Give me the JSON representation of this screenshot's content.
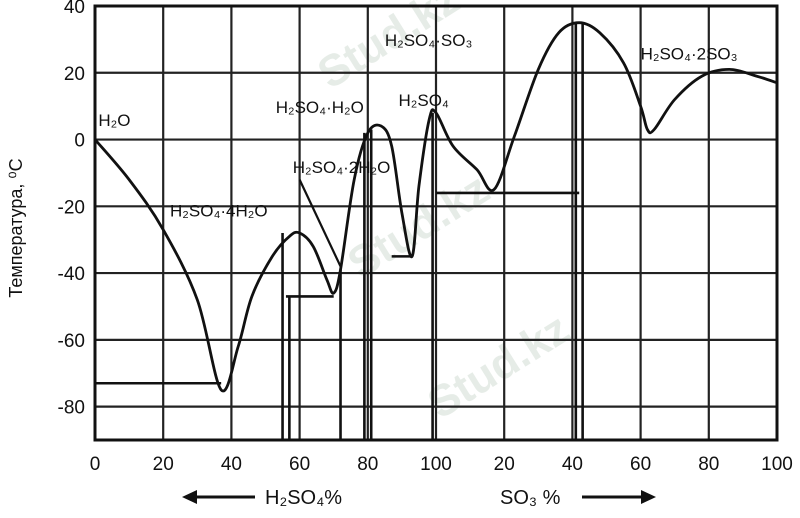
{
  "chart_data": {
    "type": "line",
    "ylabel": "Температура, ⁰С",
    "ylim": [
      -90,
      40
    ],
    "y_ticks": [
      "40",
      "20",
      "0",
      "-20",
      "-40",
      "-60",
      "-80"
    ],
    "x_ticks": [
      "0",
      "20",
      "40",
      "60",
      "80",
      "100",
      "20",
      "40",
      "60",
      "80",
      "100"
    ],
    "x_axis_left_label": "H₂SO₄%",
    "x_axis_right_label": "SO₃ %",
    "grid": true,
    "series": [
      {
        "values": [
          {
            "seg": "H2SO4",
            "x": 0,
            "y": 0
          },
          {
            "seg": "H2SO4",
            "x": 10,
            "y": -12
          },
          {
            "seg": "H2SO4",
            "x": 20,
            "y": -27
          },
          {
            "seg": "H2SO4",
            "x": 30,
            "y": -48
          },
          {
            "seg": "H2SO4",
            "x": 37,
            "y": -75
          },
          {
            "seg": "H2SO4",
            "x": 42,
            "y": -62
          },
          {
            "seg": "H2SO4",
            "x": 46,
            "y": -47
          },
          {
            "seg": "H2SO4",
            "x": 52,
            "y": -35
          },
          {
            "seg": "H2SO4",
            "x": 57,
            "y": -29
          },
          {
            "seg": "H2SO4",
            "x": 60,
            "y": -28
          },
          {
            "seg": "H2SO4",
            "x": 64,
            "y": -32
          },
          {
            "seg": "H2SO4",
            "x": 68,
            "y": -42
          },
          {
            "seg": "H2SO4",
            "x": 70,
            "y": -46
          },
          {
            "seg": "H2SO4",
            "x": 72,
            "y": -39
          },
          {
            "seg": "H2SO4",
            "x": 76,
            "y": -12
          },
          {
            "seg": "H2SO4",
            "x": 80,
            "y": 2
          },
          {
            "seg": "H2SO4",
            "x": 84,
            "y": 4
          },
          {
            "seg": "H2SO4",
            "x": 87,
            "y": -2
          },
          {
            "seg": "H2SO4",
            "x": 90,
            "y": -22
          },
          {
            "seg": "H2SO4",
            "x": 93,
            "y": -35
          },
          {
            "seg": "H2SO4",
            "x": 95,
            "y": -14
          },
          {
            "seg": "H2SO4",
            "x": 98,
            "y": 6
          },
          {
            "seg": "H2SO4",
            "x": 100,
            "y": 8
          },
          {
            "seg": "SO3",
            "x": 5,
            "y": -2
          },
          {
            "seg": "SO3",
            "x": 12,
            "y": -9
          },
          {
            "seg": "SO3",
            "x": 17,
            "y": -15
          },
          {
            "seg": "SO3",
            "x": 23,
            "y": 1
          },
          {
            "seg": "SO3",
            "x": 30,
            "y": 21
          },
          {
            "seg": "SO3",
            "x": 36,
            "y": 32
          },
          {
            "seg": "SO3",
            "x": 42,
            "y": 35
          },
          {
            "seg": "SO3",
            "x": 48,
            "y": 32
          },
          {
            "seg": "SO3",
            "x": 55,
            "y": 23
          },
          {
            "seg": "SO3",
            "x": 60,
            "y": 10
          },
          {
            "seg": "SO3",
            "x": 62,
            "y": 3
          },
          {
            "seg": "SO3",
            "x": 64,
            "y": 3
          },
          {
            "seg": "SO3",
            "x": 70,
            "y": 12
          },
          {
            "seg": "SO3",
            "x": 78,
            "y": 19
          },
          {
            "seg": "SO3",
            "x": 86,
            "y": 21
          },
          {
            "seg": "SO3",
            "x": 94,
            "y": 19
          },
          {
            "seg": "SO3",
            "x": 100,
            "y": 17
          }
        ]
      }
    ],
    "annotations": [
      {
        "text": "H₂O",
        "seg": "H2SO4",
        "x": 1,
        "y": 4
      },
      {
        "text": "H₂SO₄·2H₂O",
        "seg": "H2SO4",
        "x": 58,
        "y": -10
      },
      {
        "text": "H₂SO₄·4H₂O",
        "seg": "H2SO4",
        "x": 22,
        "y": -23
      },
      {
        "text": "H₂SO₄·H₂O",
        "seg": "H2SO4",
        "x": 53,
        "y": 8
      },
      {
        "text": "H₂SO₄",
        "seg": "H2SO4",
        "x": 89,
        "y": 10
      },
      {
        "text": "H₂SO₄·SO₃",
        "seg": "SO3",
        "x": -15,
        "y": 28
      },
      {
        "text": "H₂SO₄·2SO₃",
        "seg": "SO3",
        "x": 60,
        "y": 24
      }
    ],
    "tielines": [
      {
        "seg": "H2SO4",
        "x1": 0,
        "x2": 37,
        "y": -73
      },
      {
        "seg": "H2SO4",
        "x1": 56,
        "x2": 70,
        "y": -47
      },
      {
        "seg": "H2SO4",
        "x1": 87,
        "x2": 93,
        "y": -35
      },
      {
        "seg": "SO3",
        "x1": 0,
        "x2": 42,
        "y": -16
      }
    ],
    "verticals": [
      {
        "seg": "H2SO4",
        "x": 55,
        "y1": -90,
        "y2": -28
      },
      {
        "seg": "H2SO4",
        "x": 57,
        "y1": -90,
        "y2": -47
      },
      {
        "seg": "H2SO4",
        "x": 72,
        "y1": -90,
        "y2": -39
      },
      {
        "seg": "H2SO4",
        "x": 79,
        "y1": -90,
        "y2": 2
      },
      {
        "seg": "H2SO4",
        "x": 81,
        "y1": -90,
        "y2": 3
      },
      {
        "seg": "H2SO4",
        "x": 99,
        "y1": -90,
        "y2": 8
      },
      {
        "seg": "SO3",
        "x": 41,
        "y1": -90,
        "y2": 35
      },
      {
        "seg": "SO3",
        "x": 43,
        "y1": -90,
        "y2": 35
      }
    ]
  },
  "watermark": "Stud.kz"
}
